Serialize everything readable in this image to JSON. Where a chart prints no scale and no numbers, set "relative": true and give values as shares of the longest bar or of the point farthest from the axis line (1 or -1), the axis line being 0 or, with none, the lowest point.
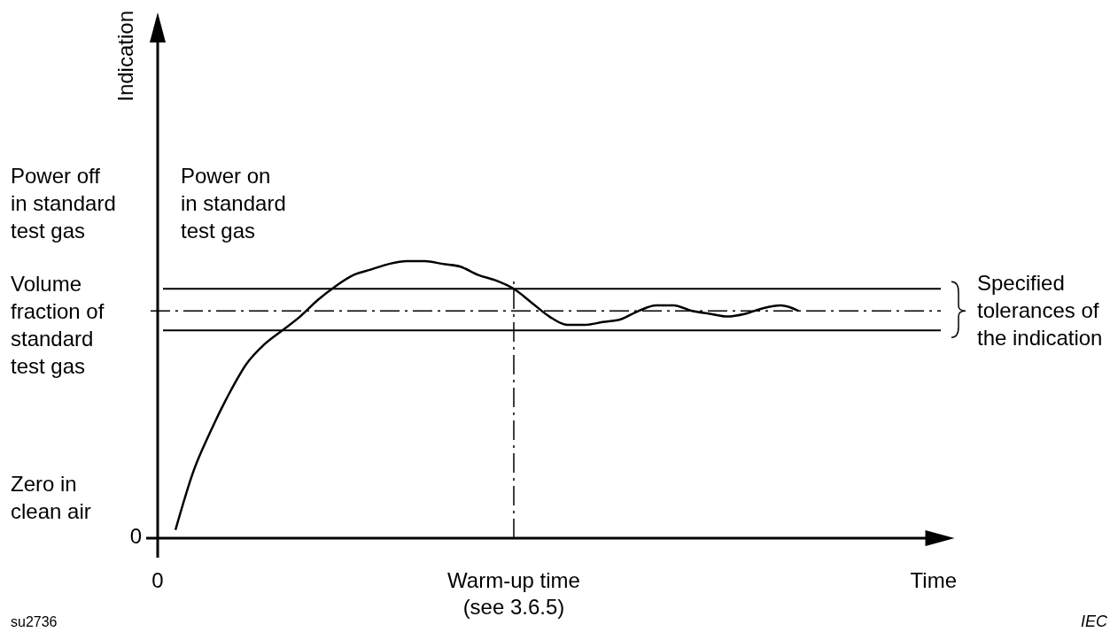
{
  "chart_data": {
    "type": "line",
    "relative": true,
    "xlabel": "Time",
    "categories": [
      "0",
      null,
      null,
      null,
      null,
      null,
      null,
      null,
      null,
      null,
      null,
      null,
      null,
      null,
      null,
      null,
      null,
      null,
      null,
      null,
      "Warm-up time (see 3.6.5)",
      null,
      null,
      null,
      null,
      null,
      null,
      null,
      null,
      null,
      null,
      null,
      null,
      null,
      null,
      null,
      null,
      null,
      null,
      null,
      null,
      null,
      null,
      null,
      null,
      null
    ],
    "tick_labels": "x",
    "series": [
      {
        "color": "#000000",
        "values": [
          null,
          0.03,
          0.24,
          0.39,
          0.52,
          0.63,
          0.7,
          0.75,
          0.8,
          0.86,
          0.91,
          0.95,
          0.97,
          0.99,
          1.0,
          1.0,
          0.99,
          0.98,
          0.95,
          0.93,
          0.9,
          0.85,
          0.8,
          0.77,
          0.77,
          0.78,
          0.79,
          0.82,
          0.84,
          0.84,
          0.82,
          0.81,
          0.8,
          0.81,
          0.83,
          0.84,
          0.82,
          null,
          null,
          null,
          null,
          null,
          null,
          null,
          null,
          null
        ]
      }
    ],
    "ref_lines": [
      {
        "axis": "y",
        "value": 0.9,
        "color": "#000000",
        "line_style": "solid"
      },
      {
        "axis": "y",
        "value": 0.82,
        "color": "#000000",
        "line_style": "dashed",
        "label": "Volume fraction of standard test gas"
      },
      {
        "axis": "y",
        "value": 0.75,
        "color": "#000000",
        "line_style": "solid"
      },
      {
        "axis": "x",
        "value": "Warm-up time (see 3.6.5)",
        "color": "#000000",
        "line_style": "dashed"
      }
    ],
    "annotations": [
      "Indication",
      "Power off in standard test gas",
      "Power on in standard test gas",
      "Zero in clean air",
      "0",
      "Specified tolerances of the indication",
      "su2736",
      "IEC"
    ]
  }
}
